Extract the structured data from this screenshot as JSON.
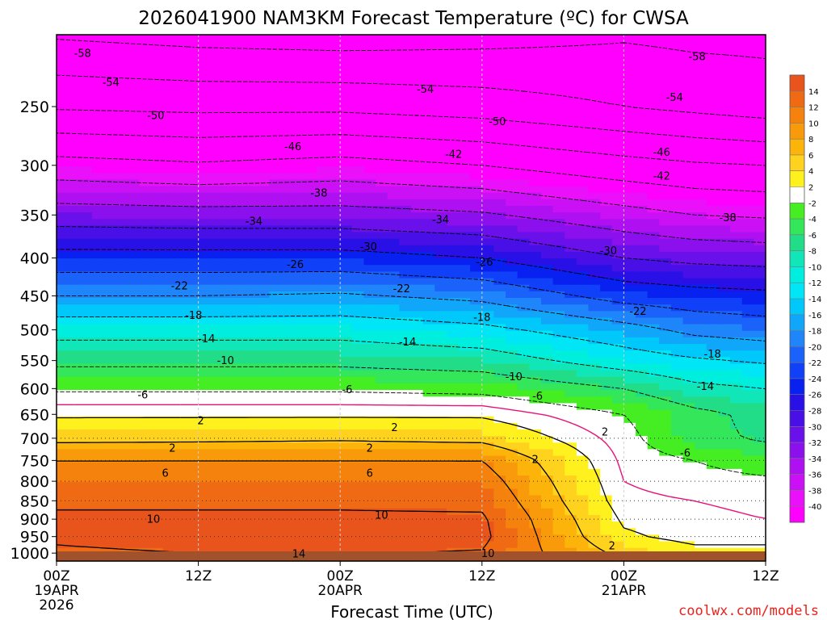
{
  "chart_data": {
    "type": "heatmap",
    "title": "2026041900 NAM3KM Forecast Temperature (ºC) for CWSA",
    "xlabel": "Forecast Time (UTC)",
    "ylabel": "",
    "credit": "coolwx.com/models",
    "y_axis": {
      "type": "log-pressure",
      "unit": "hPa",
      "range": [
        1025,
        200
      ],
      "ticks": [
        1000,
        950,
        900,
        850,
        800,
        750,
        700,
        650,
        600,
        550,
        500,
        450,
        400,
        350,
        300,
        250
      ]
    },
    "x_axis": {
      "range_hours": [
        0,
        60
      ],
      "ticks": [
        {
          "hour": 0,
          "label": "00Z",
          "sub1": "19APR",
          "sub2": "2026"
        },
        {
          "hour": 12,
          "label": "12Z",
          "sub1": "",
          "sub2": ""
        },
        {
          "hour": 24,
          "label": "00Z",
          "sub1": "20APR",
          "sub2": ""
        },
        {
          "hour": 36,
          "label": "12Z",
          "sub1": "",
          "sub2": ""
        },
        {
          "hour": 48,
          "label": "00Z",
          "sub1": "21APR",
          "sub2": ""
        },
        {
          "hour": 60,
          "label": "12Z",
          "sub1": "",
          "sub2": ""
        }
      ]
    },
    "grid": {
      "vertical": "dashed",
      "horizontal": "dotted-lower-levels"
    },
    "colorbar": {
      "position": "right",
      "labels": [
        "14",
        "12",
        "10",
        "8",
        "6",
        "4",
        "2",
        "-2",
        "-4",
        "-6",
        "-8",
        "-10",
        "-12",
        "-14",
        "-16",
        "-18",
        "-20",
        "-22",
        "-24",
        "-26",
        "-28",
        "-30",
        "-32",
        "-34",
        "-36",
        "-38",
        "-40"
      ],
      "bins": [
        {
          "lo": 14,
          "hi": 16,
          "color": "#e8541c"
        },
        {
          "lo": 12,
          "hi": 14,
          "color": "#f06a14"
        },
        {
          "lo": 10,
          "hi": 12,
          "color": "#f5820c"
        },
        {
          "lo": 8,
          "hi": 10,
          "color": "#f99a0a"
        },
        {
          "lo": 6,
          "hi": 8,
          "color": "#fcb40a"
        },
        {
          "lo": 4,
          "hi": 6,
          "color": "#ffd21e"
        },
        {
          "lo": 2,
          "hi": 4,
          "color": "#fff11e"
        },
        {
          "lo": -2,
          "hi": 2,
          "color": "#ffffff"
        },
        {
          "lo": -4,
          "hi": -2,
          "color": "#44ee22"
        },
        {
          "lo": -6,
          "hi": -4,
          "color": "#33e65a"
        },
        {
          "lo": -8,
          "hi": -6,
          "color": "#22dd88"
        },
        {
          "lo": -10,
          "hi": -8,
          "color": "#11e6b8"
        },
        {
          "lo": -12,
          "hi": -10,
          "color": "#00eedd"
        },
        {
          "lo": -14,
          "hi": -12,
          "color": "#00e6f6"
        },
        {
          "lo": -16,
          "hi": -14,
          "color": "#00c8fa"
        },
        {
          "lo": -18,
          "hi": -16,
          "color": "#10a6fa"
        },
        {
          "lo": -20,
          "hi": -18,
          "color": "#1e86fa"
        },
        {
          "lo": -22,
          "hi": -20,
          "color": "#1a62fa"
        },
        {
          "lo": -24,
          "hi": -22,
          "color": "#1040f8"
        },
        {
          "lo": -26,
          "hi": -24,
          "color": "#0820f0"
        },
        {
          "lo": -28,
          "hi": -26,
          "color": "#2810e6"
        },
        {
          "lo": -30,
          "hi": -28,
          "color": "#4810e6"
        },
        {
          "lo": -32,
          "hi": -30,
          "color": "#6a10ea"
        },
        {
          "lo": -34,
          "hi": -32,
          "color": "#8c10ee"
        },
        {
          "lo": -36,
          "hi": -34,
          "color": "#ae10f2"
        },
        {
          "lo": -38,
          "hi": -36,
          "color": "#cc10f6"
        },
        {
          "lo": -40,
          "hi": -38,
          "color": "#ea10fa"
        },
        {
          "lo": -60,
          "hi": -40,
          "color": "#ff00ff"
        }
      ]
    },
    "profile": {
      "hours": [
        0,
        12,
        24,
        36,
        48,
        54,
        60
      ],
      "pressure": [
        1000,
        950,
        900,
        850,
        800,
        750,
        700,
        650,
        600,
        550,
        500,
        450,
        400,
        350,
        300,
        250,
        200
      ],
      "temperature": [
        [
          13.8,
          14.2,
          14.5,
          13.5,
          12.0,
          10.0,
          5.0,
          1.5,
          -2.5,
          -7.0,
          -11.5,
          -18.0,
          -24.5,
          -32.0,
          -40.5,
          -50.5,
          -58.5
        ],
        [
          14.0,
          14.5,
          14.5,
          13.5,
          12.0,
          10.0,
          5.2,
          1.5,
          -2.5,
          -7.0,
          -11.5,
          -18.0,
          -24.5,
          -32.5,
          -41.5,
          -51.0,
          -59.5
        ],
        [
          14.2,
          14.8,
          14.5,
          13.5,
          12.0,
          10.0,
          5.5,
          1.5,
          -2.5,
          -7.0,
          -11.5,
          -17.5,
          -24.5,
          -32.5,
          -40.5,
          -51.0,
          -60.0
        ],
        [
          13.8,
          14.8,
          14.5,
          13.2,
          11.8,
          10.0,
          5.0,
          1.5,
          -3.0,
          -8.0,
          -13.0,
          -19.0,
          -26.0,
          -33.5,
          -42.0,
          -52.0,
          -59.5
        ],
        [
          5.0,
          2.5,
          1.5,
          0.5,
          0.0,
          -0.5,
          -1.0,
          -2.0,
          -6.0,
          -12.0,
          -16.5,
          -23.5,
          -30.0,
          -36.5,
          -44.5,
          -54.0,
          -58.5
        ],
        [
          3.0,
          1.0,
          0.5,
          0.0,
          -1.0,
          -2.0,
          -5.0,
          -5.0,
          -9.0,
          -13.5,
          -19.0,
          -24.5,
          -31.0,
          -38.0,
          -45.5,
          -55.0,
          -59.0
        ],
        [
          3.0,
          1.0,
          0.0,
          -0.5,
          -1.5,
          -3.5,
          -6.5,
          -7.0,
          -10.0,
          -14.5,
          -20.0,
          -25.0,
          -31.5,
          -38.5,
          -46.0,
          -56.0,
          -59.0
        ]
      ]
    },
    "contour_levels_labeled": [
      14,
      10,
      6,
      2,
      -6,
      -10,
      -14,
      -18,
      -22,
      -26,
      -30,
      -34,
      -38,
      -42,
      -46,
      -50,
      -54,
      -58
    ],
    "contour_labels": [
      {
        "text": "-58",
        "hour": 2.2,
        "pressure": 212
      },
      {
        "text": "-54",
        "hour": 4.6,
        "pressure": 232
      },
      {
        "text": "-50",
        "hour": 8.4,
        "pressure": 257
      },
      {
        "text": "-46",
        "hour": 20.0,
        "pressure": 283
      },
      {
        "text": "-38",
        "hour": 22.2,
        "pressure": 327
      },
      {
        "text": "-34",
        "hour": 16.7,
        "pressure": 357
      },
      {
        "text": "-26",
        "hour": 20.2,
        "pressure": 408
      },
      {
        "text": "-22",
        "hour": 10.4,
        "pressure": 436
      },
      {
        "text": "-18",
        "hour": 11.6,
        "pressure": 478
      },
      {
        "text": "-14",
        "hour": 12.7,
        "pressure": 514
      },
      {
        "text": "-10",
        "hour": 14.3,
        "pressure": 550
      },
      {
        "text": "-6",
        "hour": 7.3,
        "pressure": 612
      },
      {
        "text": "-6",
        "hour": 24.6,
        "pressure": 602
      },
      {
        "text": "2",
        "hour": 12.2,
        "pressure": 663
      },
      {
        "text": "2",
        "hour": 9.8,
        "pressure": 722
      },
      {
        "text": "6",
        "hour": 9.2,
        "pressure": 780
      },
      {
        "text": "10",
        "hour": 8.2,
        "pressure": 900
      },
      {
        "text": "-54",
        "hour": 31.2,
        "pressure": 237
      },
      {
        "text": "-50",
        "hour": 37.3,
        "pressure": 262
      },
      {
        "text": "-42",
        "hour": 33.6,
        "pressure": 290
      },
      {
        "text": "-34",
        "hour": 32.5,
        "pressure": 355
      },
      {
        "text": "-30",
        "hour": 26.4,
        "pressure": 386
      },
      {
        "text": "-26",
        "hour": 36.2,
        "pressure": 405
      },
      {
        "text": "-22",
        "hour": 29.2,
        "pressure": 440
      },
      {
        "text": "-18",
        "hour": 36.0,
        "pressure": 481
      },
      {
        "text": "-14",
        "hour": 29.7,
        "pressure": 519
      },
      {
        "text": "-10",
        "hour": 38.7,
        "pressure": 578
      },
      {
        "text": "-6",
        "hour": 40.7,
        "pressure": 614
      },
      {
        "text": "2",
        "hour": 28.6,
        "pressure": 677
      },
      {
        "text": "2",
        "hour": 26.5,
        "pressure": 722
      },
      {
        "text": "6",
        "hour": 26.5,
        "pressure": 780
      },
      {
        "text": "10",
        "hour": 27.5,
        "pressure": 888
      },
      {
        "text": "14",
        "hour": 20.5,
        "pressure": 1002
      },
      {
        "text": "10",
        "hour": 36.5,
        "pressure": 1001
      },
      {
        "text": "2",
        "hour": 40.5,
        "pressure": 747
      },
      {
        "text": "-58",
        "hour": 54.2,
        "pressure": 214
      },
      {
        "text": "-54",
        "hour": 52.3,
        "pressure": 243
      },
      {
        "text": "-46",
        "hour": 51.2,
        "pressure": 288
      },
      {
        "text": "-42",
        "hour": 51.2,
        "pressure": 310
      },
      {
        "text": "-38",
        "hour": 56.8,
        "pressure": 353
      },
      {
        "text": "-30",
        "hour": 46.7,
        "pressure": 391
      },
      {
        "text": "-22",
        "hour": 49.2,
        "pressure": 472
      },
      {
        "text": "-18",
        "hour": 55.5,
        "pressure": 539
      },
      {
        "text": "-14",
        "hour": 54.9,
        "pressure": 596
      },
      {
        "text": "-6",
        "hour": 53.2,
        "pressure": 733
      },
      {
        "text": "2",
        "hour": 46.4,
        "pressure": 686
      },
      {
        "text": "2",
        "hour": 47.0,
        "pressure": 977
      }
    ]
  }
}
